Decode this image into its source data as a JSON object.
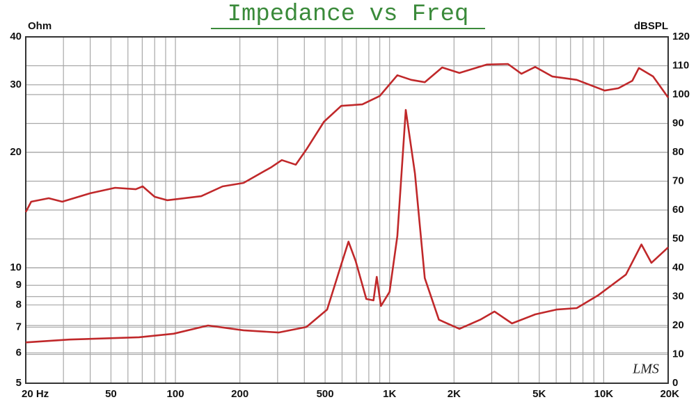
{
  "chart_data": {
    "type": "line",
    "title": "Impedance vs Freq",
    "y_label": "Ohm",
    "y2_label": "dBSPL",
    "annotation": "LMS",
    "xscale": "log",
    "xlim": [
      20,
      20000
    ],
    "xticks": [
      {
        "value": 20,
        "label": "20 Hz"
      },
      50,
      100,
      200,
      500,
      {
        "value": 1000,
        "label": "1K"
      },
      {
        "value": 2000,
        "label": "2K"
      },
      {
        "value": 5000,
        "label": "5K"
      },
      {
        "value": 10000,
        "label": "10K"
      },
      {
        "value": 20000,
        "label": "20K"
      }
    ],
    "xgrid": [
      30,
      40,
      60,
      70,
      80,
      90,
      300,
      400,
      600,
      700,
      800,
      900,
      3000,
      4000,
      6000,
      7000,
      8000,
      9000
    ],
    "yscale": "log",
    "ylim": [
      5,
      40
    ],
    "yticks": [
      5,
      6,
      7,
      8,
      9,
      10,
      20,
      30,
      40
    ],
    "y2lim": [
      0,
      120
    ],
    "y2ticks": [
      0,
      10,
      20,
      30,
      40,
      50,
      60,
      70,
      80,
      90,
      100,
      110,
      120
    ],
    "grid": true,
    "series": [
      {
        "color": "#c0282a",
        "axis": "y2",
        "x": [
          20,
          21.2,
          25.6,
          29.6,
          40,
          52.3,
          65.3,
          70.3,
          79.9,
          91.5,
          132,
          166,
          208,
          281,
          314,
          365,
          409,
          494,
          595,
          746,
          899,
          1087,
          1262,
          1460,
          1760,
          2120,
          2850,
          3570,
          4130,
          4790,
          5750,
          7480,
          10100,
          11700,
          13600,
          14600,
          17000,
          20000
        ],
        "values": [
          59.3,
          62.9,
          64.1,
          62.9,
          65.8,
          67.7,
          67.2,
          68.2,
          64.6,
          63.4,
          64.8,
          68.2,
          69.4,
          74.9,
          77.3,
          75.7,
          81.0,
          90.6,
          96.1,
          96.6,
          99.5,
          106.7,
          105.1,
          104.3,
          109.4,
          107.5,
          110.4,
          110.6,
          107.2,
          109.6,
          106.3,
          105.1,
          101.4,
          102.2,
          104.8,
          109.2,
          106.3,
          99.0
        ]
      },
      {
        "color": "#c0282a",
        "axis": "y",
        "x": [
          20,
          32,
          67.6,
          98.2,
          142,
          208,
          303,
          409,
          511,
          595,
          643,
          695,
          779,
          841,
          871,
          911,
          1000,
          1087,
          1190,
          1314,
          1460,
          1700,
          2120,
          2650,
          3090,
          3730,
          4790,
          6020,
          7480,
          9400,
          12700,
          15000,
          16700,
          20000
        ],
        "values": [
          6.39,
          6.5,
          6.59,
          6.73,
          7.07,
          6.87,
          6.78,
          7.01,
          7.78,
          10.2,
          11.7,
          10.4,
          8.29,
          8.22,
          9.47,
          7.95,
          8.65,
          12.1,
          25.8,
          17.6,
          9.4,
          7.32,
          6.93,
          7.32,
          7.69,
          7.16,
          7.56,
          7.78,
          7.85,
          8.47,
          9.6,
          11.5,
          10.3,
          11.3
        ]
      }
    ]
  }
}
